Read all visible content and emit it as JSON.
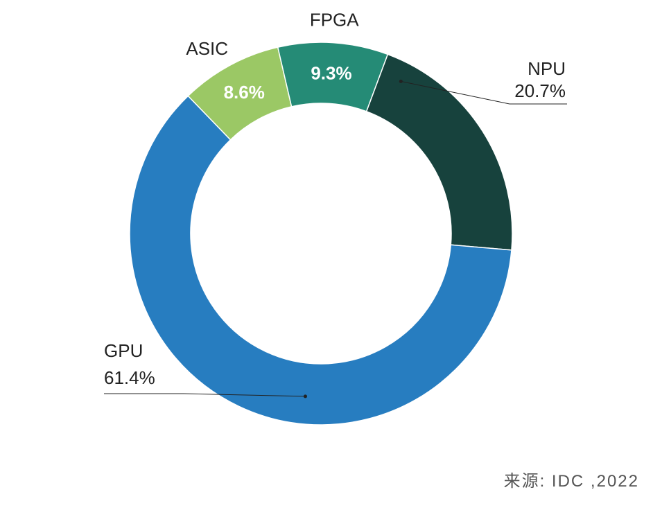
{
  "chart_data": {
    "type": "pie",
    "variant": "donut",
    "title": "",
    "slices": [
      {
        "label": "ASIC",
        "value": 8.6,
        "value_label": "8.6%",
        "color": "#9bc865"
      },
      {
        "label": "FPGA",
        "value": 9.3,
        "value_label": "9.3%",
        "color": "#258b76"
      },
      {
        "label": "NPU",
        "value": 20.7,
        "value_label": "20.7%",
        "color": "#17423d"
      },
      {
        "label": "GPU",
        "value": 61.4,
        "value_label": "61.4%",
        "color": "#277dc0"
      }
    ],
    "source": "来源: IDC ,2022"
  }
}
